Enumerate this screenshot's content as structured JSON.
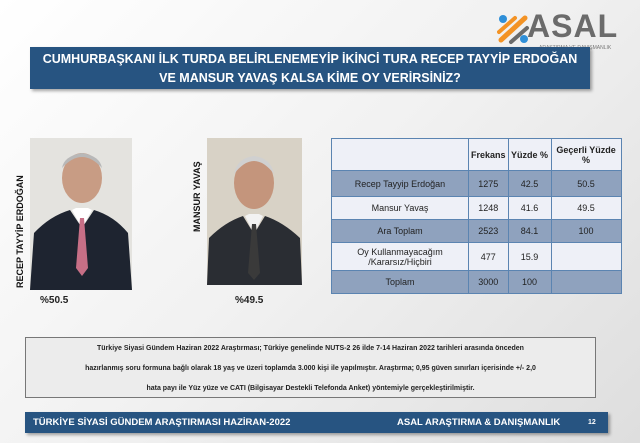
{
  "logo": {
    "name": "ASAL",
    "tagline": "ARAŞTIRMA VE DANIŞMANLIK",
    "colors": {
      "orange": "#f39325",
      "blue": "#2f8fd8",
      "gray": "#6b6b6b"
    }
  },
  "title": {
    "line1": "CUMHURBAŞKANI İLK TURDA BELİRLENEMEYİP İKİNCİ TURA RECEP TAYYİP ERDOĞAN",
    "line2": "VE MANSUR YAVAŞ KALSA KİME OY VERİRSİNİZ?"
  },
  "candidates": [
    {
      "name": "RECEP TAYYİP ERDOĞAN",
      "percent": "%50.5"
    },
    {
      "name": "MANSUR YAVAŞ",
      "percent": "%49.5"
    }
  ],
  "table": {
    "headers": [
      "",
      "Frekans",
      "Yüzde %",
      "Geçerli Yüzde %"
    ],
    "rows": [
      [
        "Recep Tayyip Erdoğan",
        "1275",
        "42.5",
        "50.5"
      ],
      [
        "Mansur Yavaş",
        "1248",
        "41.6",
        "49.5"
      ],
      [
        "Ara Toplam",
        "2523",
        "84.1",
        "100"
      ],
      [
        "Oy Kullanmayacağım /Kararsız/Hiçbiri",
        "477",
        "15.9",
        ""
      ],
      [
        "Toplam",
        "3000",
        "100",
        ""
      ]
    ]
  },
  "note": {
    "line1": "Türkiye Siyasi Gündem Haziran 2022 Araştırması; Türkiye genelinde NUTS-2 26 ilde 7-14 Haziran 2022 tarihleri arasında önceden",
    "line2": "hazırlanmış soru formuna bağlı olarak 18 yaş ve üzeri toplamda 3.000 kişi ile yapılmıştır. Araştırma; 0,95 güven sınırları içerisinde +/- 2,0",
    "line3": "hata payı ile Yüz yüze ve CATI (Bilgisayar Destekli Telefonda Anket) yöntemiyle gerçekleştirilmiştir."
  },
  "footer": {
    "left": "TÜRKİYE SİYASİ GÜNDEM ARAŞTIRMASI HAZİRAN-2022",
    "right": "ASAL ARAŞTIRMA & DANIŞMANLIK",
    "page": "12"
  }
}
